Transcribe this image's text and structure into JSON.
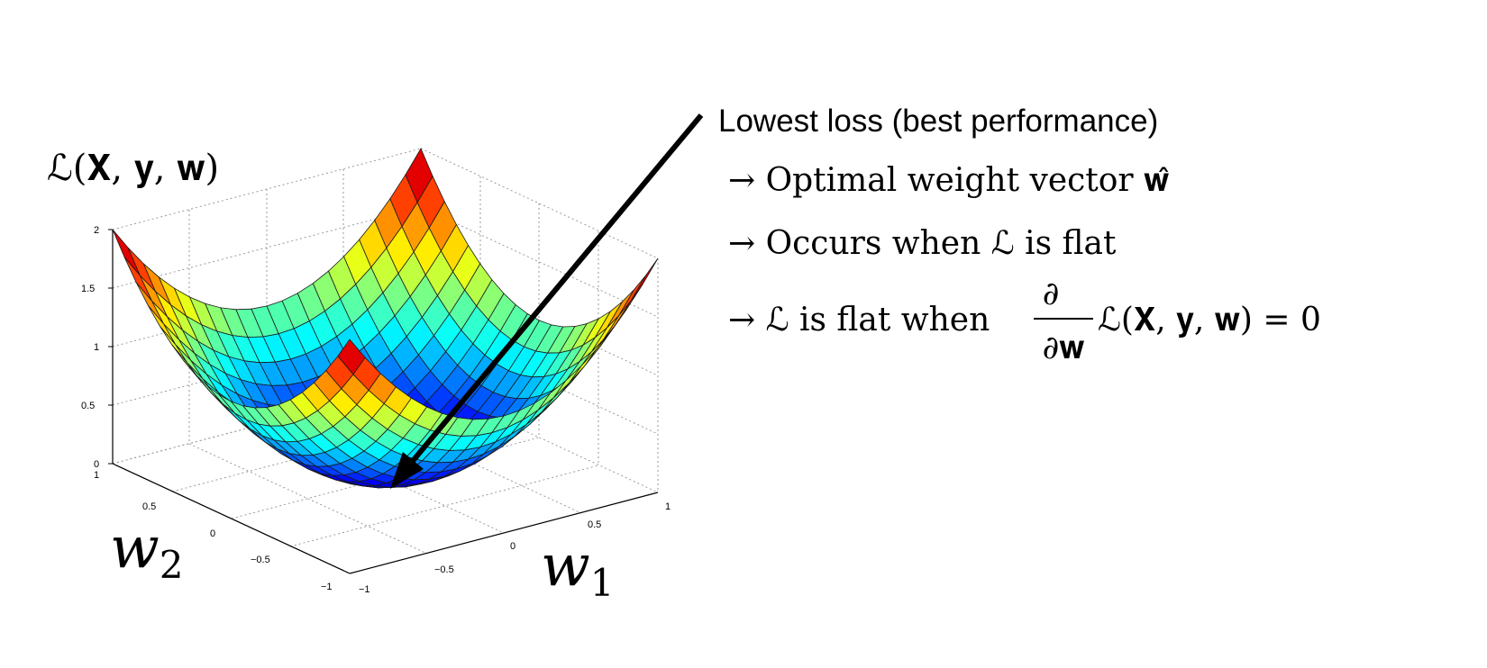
{
  "plot": {
    "loss_label": "ℒ(𝐗, 𝐲, 𝐰)",
    "z_ticks": [
      "0",
      "0.5",
      "1",
      "1.5",
      "2"
    ],
    "w2_ticks": [
      "1",
      "0.5",
      "0",
      "−0.5",
      "−1"
    ],
    "w1_ticks": [
      "−1",
      "−0.5",
      "0",
      "0.5",
      "1"
    ],
    "w1_label_base": "w",
    "w1_label_sub": "1",
    "w2_label_base": "w",
    "w2_label_sub": "2"
  },
  "annotation": {
    "title": "Lowest loss (best performance)",
    "line1": "→ Optimal weight vector 𝐰̂",
    "line2": "→ Occurs when ℒ is flat",
    "line3_prefix": "→ ℒ is flat when",
    "frac_num": "∂",
    "frac_den": "∂𝐰",
    "line3_suffix": "ℒ(𝐗, 𝐲, 𝐰) = 0"
  },
  "colors": {
    "arrow": "#000000",
    "grid": "#9a9a9a",
    "mesh": "#1a1a1a"
  }
}
